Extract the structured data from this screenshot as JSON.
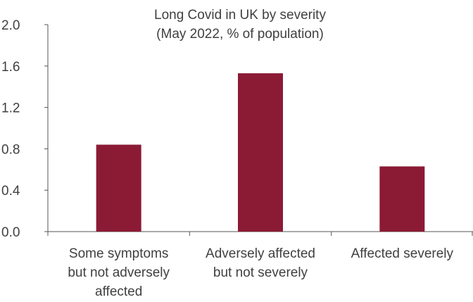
{
  "chart_data": {
    "type": "bar",
    "title": "Long Covid in UK by severity",
    "subtitle": "(May 2022, % of population)",
    "categories": [
      [
        "Some symptoms",
        "but not adversely",
        "affected"
      ],
      [
        "Adversely affected",
        "but not severely"
      ],
      [
        "Affected severely"
      ]
    ],
    "values": [
      0.84,
      1.53,
      0.63
    ],
    "ylim": [
      0,
      2.0
    ],
    "yticks": [
      "0.0",
      "0.4",
      "0.8",
      "1.2",
      "1.6",
      "2.0"
    ],
    "ytick_values": [
      0,
      0.4,
      0.8,
      1.2,
      1.6,
      2.0
    ],
    "grid": false,
    "bar_color": "#8B1A35",
    "xlabel": "",
    "ylabel": ""
  }
}
